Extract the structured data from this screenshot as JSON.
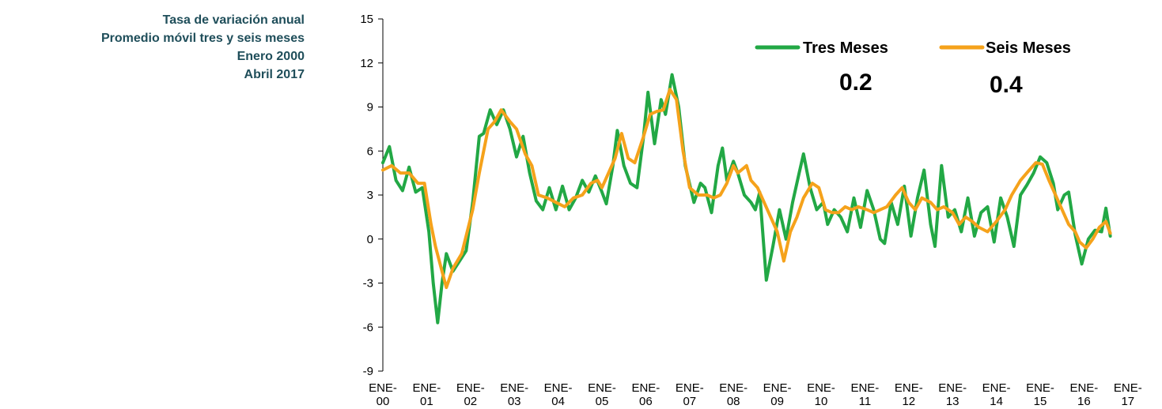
{
  "title_lines": [
    "Tasa de variación anual",
    "Promedio móvil tres y seis meses",
    "Enero 2000",
    "Abril 2017"
  ],
  "colors": {
    "title": "#1f4e5a",
    "tres": "#22a845",
    "seis": "#f5a21b",
    "axis": "#000000"
  },
  "legend": {
    "tres_label": "Tres Meses",
    "seis_label": "Seis Meses",
    "tres_value": "0.2",
    "seis_value": "0.4"
  },
  "chart_data": {
    "type": "line",
    "ylim": [
      -9,
      15
    ],
    "yticks": [
      "15",
      "12",
      "9",
      "6",
      "3",
      "0",
      "-3",
      "-6",
      "-9"
    ],
    "xtick_labels": [
      [
        "ENE-",
        "00"
      ],
      [
        "ENE-",
        "01"
      ],
      [
        "ENE-",
        "02"
      ],
      [
        "ENE-",
        "03"
      ],
      [
        "ENE-",
        "04"
      ],
      [
        "ENE-",
        "05"
      ],
      [
        "ENE-",
        "06"
      ],
      [
        "ENE-",
        "07"
      ],
      [
        "ENE-",
        "08"
      ],
      [
        "ENE-",
        "09"
      ],
      [
        "ENE-",
        "10"
      ],
      [
        "ENE-",
        "11"
      ],
      [
        "ENE-",
        "12"
      ],
      [
        "ENE-",
        "13"
      ],
      [
        "ENE-",
        "14"
      ],
      [
        "ENE-",
        "15"
      ],
      [
        "ENE-",
        "16"
      ],
      [
        "ENE-",
        "17"
      ]
    ],
    "grid": false,
    "legend_position": "top-right",
    "series": [
      {
        "name": "Tres Meses",
        "points": [
          [
            2000.0,
            5.2
          ],
          [
            2000.15,
            6.3
          ],
          [
            2000.3,
            4.0
          ],
          [
            2000.45,
            3.3
          ],
          [
            2000.6,
            4.9
          ],
          [
            2000.75,
            3.2
          ],
          [
            2000.9,
            3.5
          ],
          [
            2001.05,
            0.5
          ],
          [
            2001.15,
            -3.0
          ],
          [
            2001.25,
            -5.7
          ],
          [
            2001.35,
            -3.0
          ],
          [
            2001.45,
            -1.0
          ],
          [
            2001.6,
            -2.2
          ],
          [
            2001.75,
            -1.5
          ],
          [
            2001.9,
            -0.8
          ],
          [
            2002.05,
            2.5
          ],
          [
            2002.2,
            7.0
          ],
          [
            2002.3,
            7.2
          ],
          [
            2002.45,
            8.8
          ],
          [
            2002.6,
            7.8
          ],
          [
            2002.75,
            8.8
          ],
          [
            2002.9,
            7.5
          ],
          [
            2003.05,
            5.6
          ],
          [
            2003.2,
            7.0
          ],
          [
            2003.35,
            4.5
          ],
          [
            2003.5,
            2.6
          ],
          [
            2003.65,
            2.0
          ],
          [
            2003.8,
            3.5
          ],
          [
            2003.95,
            2.0
          ],
          [
            2004.1,
            3.6
          ],
          [
            2004.25,
            2.0
          ],
          [
            2004.4,
            2.8
          ],
          [
            2004.55,
            4.0
          ],
          [
            2004.7,
            3.2
          ],
          [
            2004.85,
            4.3
          ],
          [
            2005.0,
            3.2
          ],
          [
            2005.1,
            2.4
          ],
          [
            2005.25,
            5.0
          ],
          [
            2005.35,
            7.4
          ],
          [
            2005.5,
            5.0
          ],
          [
            2005.65,
            3.8
          ],
          [
            2005.8,
            3.5
          ],
          [
            2005.95,
            7.0
          ],
          [
            2006.05,
            10.0
          ],
          [
            2006.2,
            6.5
          ],
          [
            2006.35,
            9.5
          ],
          [
            2006.45,
            8.5
          ],
          [
            2006.6,
            11.2
          ],
          [
            2006.75,
            9.0
          ],
          [
            2006.9,
            5.0
          ],
          [
            2007.1,
            2.5
          ],
          [
            2007.25,
            3.8
          ],
          [
            2007.35,
            3.5
          ],
          [
            2007.5,
            1.8
          ],
          [
            2007.65,
            5.0
          ],
          [
            2007.75,
            6.2
          ],
          [
            2007.85,
            4.0
          ],
          [
            2008.0,
            5.3
          ],
          [
            2008.1,
            4.5
          ],
          [
            2008.25,
            3.0
          ],
          [
            2008.4,
            2.5
          ],
          [
            2008.5,
            2.0
          ],
          [
            2008.6,
            3.2
          ],
          [
            2008.75,
            -2.8
          ],
          [
            2008.9,
            -0.5
          ],
          [
            2009.05,
            2.0
          ],
          [
            2009.2,
            0.0
          ],
          [
            2009.35,
            2.5
          ],
          [
            2009.5,
            4.5
          ],
          [
            2009.6,
            5.8
          ],
          [
            2009.75,
            3.5
          ],
          [
            2009.9,
            2.0
          ],
          [
            2010.05,
            2.5
          ],
          [
            2010.15,
            1.0
          ],
          [
            2010.3,
            2.0
          ],
          [
            2010.45,
            1.5
          ],
          [
            2010.6,
            0.5
          ],
          [
            2010.75,
            2.8
          ],
          [
            2010.9,
            0.8
          ],
          [
            2011.05,
            3.3
          ],
          [
            2011.2,
            2.0
          ],
          [
            2011.35,
            0.0
          ],
          [
            2011.45,
            -0.3
          ],
          [
            2011.6,
            2.5
          ],
          [
            2011.75,
            1.0
          ],
          [
            2011.9,
            3.6
          ],
          [
            2012.05,
            0.2
          ],
          [
            2012.2,
            2.8
          ],
          [
            2012.35,
            4.7
          ],
          [
            2012.5,
            1.0
          ],
          [
            2012.6,
            -0.5
          ],
          [
            2012.75,
            5.0
          ],
          [
            2012.9,
            1.5
          ],
          [
            2013.05,
            2.0
          ],
          [
            2013.2,
            0.5
          ],
          [
            2013.35,
            2.8
          ],
          [
            2013.5,
            0.2
          ],
          [
            2013.65,
            1.8
          ],
          [
            2013.8,
            2.2
          ],
          [
            2013.95,
            -0.2
          ],
          [
            2014.1,
            2.8
          ],
          [
            2014.25,
            1.5
          ],
          [
            2014.4,
            -0.5
          ],
          [
            2014.55,
            3.0
          ],
          [
            2014.7,
            3.7
          ],
          [
            2014.85,
            4.5
          ],
          [
            2015.0,
            5.6
          ],
          [
            2015.15,
            5.2
          ],
          [
            2015.3,
            3.8
          ],
          [
            2015.4,
            2.0
          ],
          [
            2015.55,
            3.0
          ],
          [
            2015.65,
            3.2
          ],
          [
            2015.8,
            0.3
          ],
          [
            2015.95,
            -1.7
          ],
          [
            2016.1,
            0.0
          ],
          [
            2016.25,
            0.6
          ],
          [
            2016.4,
            0.5
          ],
          [
            2016.5,
            2.1
          ],
          [
            2016.6,
            0.2
          ]
        ]
      },
      {
        "name": "Seis Meses",
        "points": [
          [
            2000.0,
            4.7
          ],
          [
            2000.2,
            5.0
          ],
          [
            2000.4,
            4.5
          ],
          [
            2000.6,
            4.5
          ],
          [
            2000.8,
            3.8
          ],
          [
            2000.95,
            3.8
          ],
          [
            2001.1,
            1.0
          ],
          [
            2001.2,
            -0.5
          ],
          [
            2001.35,
            -2.2
          ],
          [
            2001.45,
            -3.3
          ],
          [
            2001.6,
            -2.0
          ],
          [
            2001.8,
            -1.0
          ],
          [
            2002.05,
            2.0
          ],
          [
            2002.2,
            4.5
          ],
          [
            2002.4,
            7.5
          ],
          [
            2002.55,
            8.0
          ],
          [
            2002.7,
            8.8
          ],
          [
            2002.9,
            8.0
          ],
          [
            2003.05,
            7.5
          ],
          [
            2003.25,
            5.8
          ],
          [
            2003.4,
            5.0
          ],
          [
            2003.55,
            3.0
          ],
          [
            2003.75,
            2.8
          ],
          [
            2003.95,
            2.5
          ],
          [
            2004.15,
            2.2
          ],
          [
            2004.35,
            2.8
          ],
          [
            2004.55,
            3.0
          ],
          [
            2004.75,
            3.8
          ],
          [
            2004.9,
            4.0
          ],
          [
            2005.0,
            3.5
          ],
          [
            2005.15,
            4.5
          ],
          [
            2005.3,
            5.5
          ],
          [
            2005.45,
            7.2
          ],
          [
            2005.6,
            5.5
          ],
          [
            2005.75,
            5.2
          ],
          [
            2005.95,
            7.0
          ],
          [
            2006.1,
            8.5
          ],
          [
            2006.25,
            8.7
          ],
          [
            2006.4,
            8.8
          ],
          [
            2006.55,
            10.2
          ],
          [
            2006.7,
            9.5
          ],
          [
            2006.85,
            6.0
          ],
          [
            2007.0,
            3.5
          ],
          [
            2007.2,
            3.0
          ],
          [
            2007.4,
            3.0
          ],
          [
            2007.55,
            2.8
          ],
          [
            2007.7,
            3.0
          ],
          [
            2007.85,
            3.8
          ],
          [
            2008.0,
            5.0
          ],
          [
            2008.1,
            4.5
          ],
          [
            2008.3,
            5.0
          ],
          [
            2008.4,
            4.0
          ],
          [
            2008.55,
            3.5
          ],
          [
            2008.7,
            2.5
          ],
          [
            2008.85,
            1.5
          ],
          [
            2009.0,
            0.5
          ],
          [
            2009.15,
            -1.5
          ],
          [
            2009.3,
            0.5
          ],
          [
            2009.45,
            1.5
          ],
          [
            2009.6,
            2.8
          ],
          [
            2009.8,
            3.8
          ],
          [
            2009.95,
            3.5
          ],
          [
            2010.1,
            2.0
          ],
          [
            2010.25,
            1.8
          ],
          [
            2010.4,
            1.8
          ],
          [
            2010.55,
            2.2
          ],
          [
            2010.7,
            2.0
          ],
          [
            2010.85,
            2.2
          ],
          [
            2011.05,
            2.0
          ],
          [
            2011.2,
            1.8
          ],
          [
            2011.35,
            2.0
          ],
          [
            2011.5,
            2.2
          ],
          [
            2011.7,
            3.0
          ],
          [
            2011.85,
            3.5
          ],
          [
            2012.0,
            2.5
          ],
          [
            2012.15,
            2.0
          ],
          [
            2012.3,
            2.8
          ],
          [
            2012.5,
            2.5
          ],
          [
            2012.65,
            2.0
          ],
          [
            2012.8,
            2.2
          ],
          [
            2013.0,
            1.8
          ],
          [
            2013.15,
            1.0
          ],
          [
            2013.3,
            1.5
          ],
          [
            2013.45,
            1.2
          ],
          [
            2013.6,
            0.8
          ],
          [
            2013.8,
            0.5
          ],
          [
            2014.0,
            1.2
          ],
          [
            2014.2,
            2.0
          ],
          [
            2014.35,
            3.0
          ],
          [
            2014.55,
            4.0
          ],
          [
            2014.75,
            4.7
          ],
          [
            2014.9,
            5.2
          ],
          [
            2015.05,
            5.1
          ],
          [
            2015.2,
            4.0
          ],
          [
            2015.35,
            3.0
          ],
          [
            2015.5,
            2.0
          ],
          [
            2015.65,
            1.0
          ],
          [
            2015.8,
            0.5
          ],
          [
            2015.9,
            -0.2
          ],
          [
            2016.05,
            -0.6
          ],
          [
            2016.2,
            0.0
          ],
          [
            2016.35,
            0.8
          ],
          [
            2016.5,
            1.2
          ],
          [
            2016.6,
            0.4
          ]
        ]
      }
    ]
  }
}
